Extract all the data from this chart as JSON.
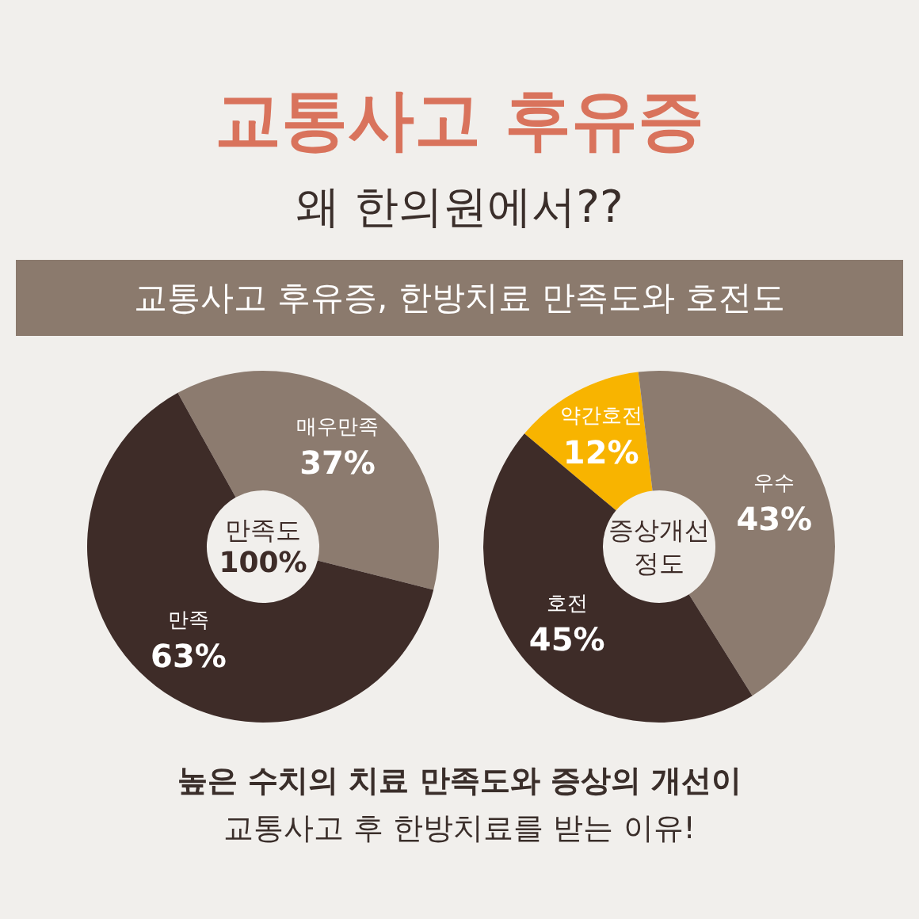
{
  "chart_data": [
    {
      "type": "other",
      "title": "교통사고 후유증",
      "subtitle": "왜 한의원에서??",
      "annotations": [
        "교통사고 후유증, 한방치료 만족도와 호전도"
      ]
    },
    {
      "type": "donut",
      "title": "만족도",
      "annotations": [
        "100%"
      ],
      "categories": [
        "매우만족",
        "만족"
      ],
      "values": [
        37,
        63
      ],
      "colors": [
        "#8c7b6f",
        "#3e2c28"
      ],
      "value_labels": [
        "37%",
        "63%"
      ],
      "legend": false
    },
    {
      "type": "donut",
      "title": "증상개선 정도",
      "categories": [
        "약간호전",
        "우수",
        "호전"
      ],
      "values": [
        12,
        43,
        45
      ],
      "colors": [
        "#f8b400",
        "#8c7b6f",
        "#3e2c28"
      ],
      "value_labels": [
        "12%",
        "43%",
        "45%"
      ],
      "legend": false
    },
    {
      "type": "other",
      "annotations": [
        "높은 수치의 치료 만족도와 증상의 개선이",
        "교통사고 후 한방치료를 받는 이유!"
      ]
    }
  ]
}
